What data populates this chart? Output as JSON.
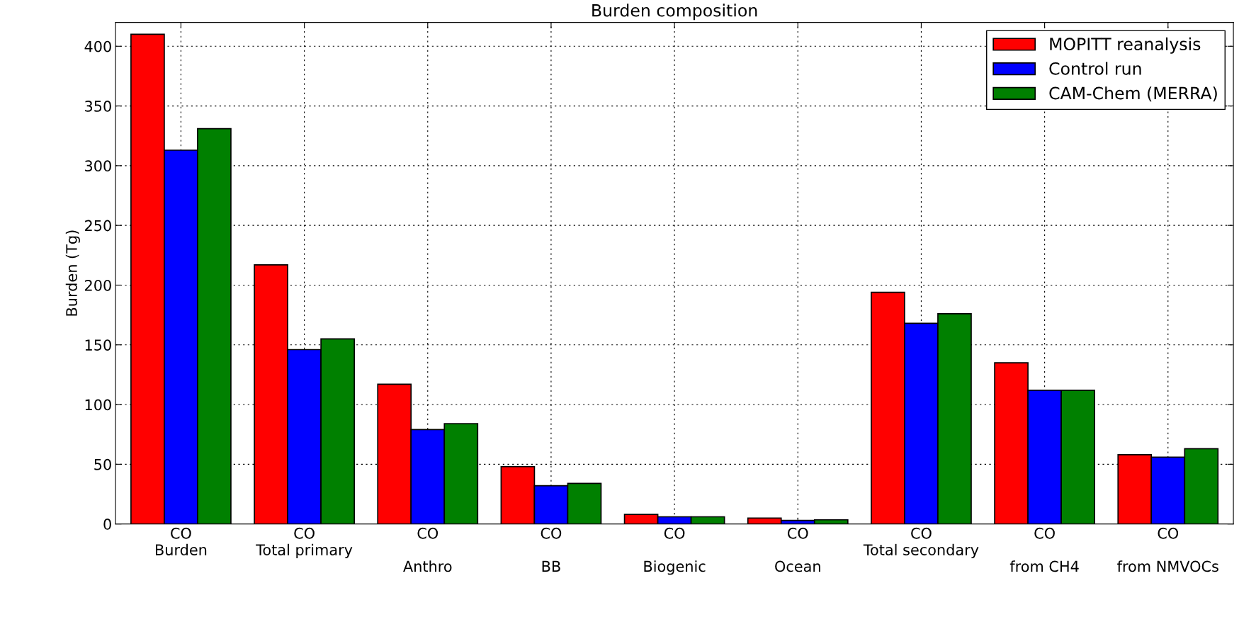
{
  "chart_data": {
    "type": "bar",
    "title": "Burden composition",
    "ylabel": "Burden (Tg)",
    "categories": [
      "CO\nBurden",
      "CO\nTotal primary",
      "CO\n\nAnthro",
      "CO\n\nBB",
      "CO\n\nBiogenic",
      "CO\n\nOcean",
      "CO\nTotal secondary",
      "CO\n\nfrom CH4",
      "CO\n\nfrom NMVOCs"
    ],
    "series": [
      {
        "name": "MOPITT reanalysis",
        "color": "#ff0000",
        "values": [
          410,
          217,
          117,
          48,
          8,
          5,
          194,
          135,
          58
        ]
      },
      {
        "name": "Control run",
        "color": "#0000ff",
        "values": [
          313,
          146,
          79,
          32,
          6,
          3,
          168,
          112,
          56
        ]
      },
      {
        "name": "CAM-Chem (MERRA)",
        "color": "#008000",
        "values": [
          331,
          155,
          84,
          34,
          6,
          3.5,
          176,
          112,
          63
        ]
      }
    ],
    "ylim": [
      0,
      420
    ],
    "yticks": [
      0,
      50,
      100,
      150,
      200,
      250,
      300,
      350,
      400
    ],
    "grid": true,
    "legend": "top right"
  }
}
